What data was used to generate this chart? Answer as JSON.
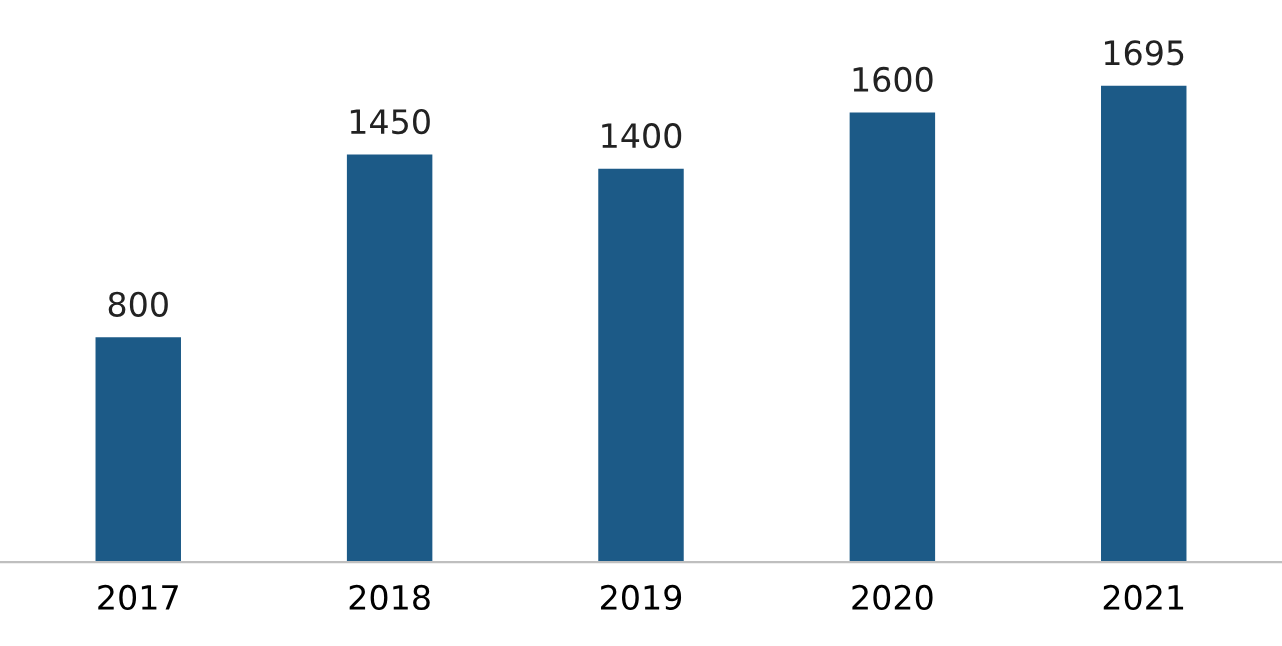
{
  "chart_data": {
    "type": "bar",
    "categories": [
      "2017",
      "2018",
      "2019",
      "2020",
      "2021"
    ],
    "values": [
      800,
      1450,
      1400,
      1600,
      1695
    ],
    "color": "#1c5a87",
    "data_labels": true,
    "grid": false,
    "legend": false
  }
}
